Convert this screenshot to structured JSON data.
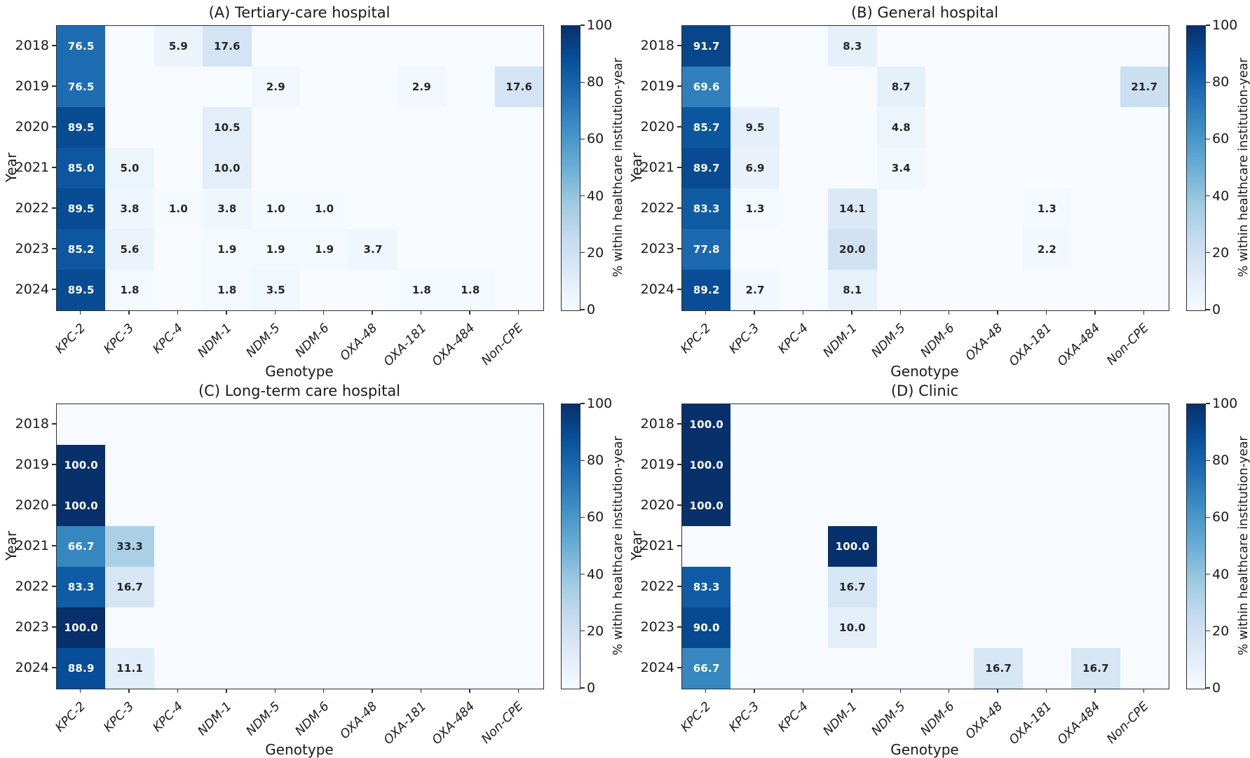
{
  "figure": {
    "xlabel": "Genotype",
    "ylabel": "Year",
    "colorbar_label": "% within healthcare institution-year"
  },
  "colors": {
    "colormap": "Blues",
    "colormap_low": "#f7fbff",
    "colormap_high": "#08306b",
    "annotation_dark": "#262626",
    "annotation_light": "#ffffff",
    "axis": "#2e2e2e",
    "background": "#ffffff"
  },
  "chart_data": [
    {
      "type": "heatmap",
      "panel": "A",
      "title": "(A) Tertiary-care hospital",
      "xlabel": "Genotype",
      "ylabel": "Year",
      "x_categories": [
        "KPC-2",
        "KPC-3",
        "KPC-4",
        "NDM-1",
        "NDM-5",
        "NDM-6",
        "OXA-48",
        "OXA-181",
        "OXA-484",
        "Non-CPE"
      ],
      "y_categories": [
        "2018",
        "2019",
        "2020",
        "2021",
        "2022",
        "2023",
        "2024"
      ],
      "values": [
        [
          76.5,
          0,
          5.9,
          17.6,
          0,
          0,
          0,
          0,
          0,
          0
        ],
        [
          76.5,
          0,
          0,
          0,
          2.9,
          0,
          0,
          2.9,
          0,
          17.6
        ],
        [
          89.5,
          0,
          0,
          10.5,
          0,
          0,
          0,
          0,
          0,
          0
        ],
        [
          85.0,
          5.0,
          0,
          10.0,
          0,
          0,
          0,
          0,
          0,
          0
        ],
        [
          89.5,
          3.8,
          1.0,
          3.8,
          1.0,
          1.0,
          0,
          0,
          0,
          0
        ],
        [
          85.2,
          5.6,
          0,
          1.9,
          1.9,
          1.9,
          3.7,
          0,
          0,
          0
        ],
        [
          89.5,
          1.8,
          0,
          1.8,
          3.5,
          0,
          0,
          1.8,
          1.8,
          0
        ]
      ],
      "vmin": 0,
      "vmax": 100,
      "colorbar_ticks": [
        0,
        20,
        40,
        60,
        80,
        100
      ],
      "colorbar_label": "% within healthcare institution-year",
      "annotation_note": "values shown to one decimal; zero cells left blank"
    },
    {
      "type": "heatmap",
      "panel": "B",
      "title": "(B) General hospital",
      "xlabel": "Genotype",
      "ylabel": "Year",
      "x_categories": [
        "KPC-2",
        "KPC-3",
        "KPC-4",
        "NDM-1",
        "NDM-5",
        "NDM-6",
        "OXA-48",
        "OXA-181",
        "OXA-484",
        "Non-CPE"
      ],
      "y_categories": [
        "2018",
        "2019",
        "2020",
        "2021",
        "2022",
        "2023",
        "2024"
      ],
      "values": [
        [
          91.7,
          0,
          0,
          8.3,
          0,
          0,
          0,
          0,
          0,
          0
        ],
        [
          69.6,
          0,
          0,
          0,
          8.7,
          0,
          0,
          0,
          0,
          21.7
        ],
        [
          85.7,
          9.5,
          0,
          0,
          4.8,
          0,
          0,
          0,
          0,
          0
        ],
        [
          89.7,
          6.9,
          0,
          0,
          3.4,
          0,
          0,
          0,
          0,
          0
        ],
        [
          83.3,
          1.3,
          0,
          14.1,
          0,
          0,
          0,
          1.3,
          0,
          0
        ],
        [
          77.8,
          0,
          0,
          20.0,
          0,
          0,
          0,
          2.2,
          0,
          0
        ],
        [
          89.2,
          2.7,
          0,
          8.1,
          0,
          0,
          0,
          0,
          0,
          0
        ]
      ],
      "vmin": 0,
      "vmax": 100,
      "colorbar_ticks": [
        0,
        20,
        40,
        60,
        80,
        100
      ],
      "colorbar_label": "% within healthcare institution-year",
      "annotation_note": "values shown to one decimal; zero cells left blank"
    },
    {
      "type": "heatmap",
      "panel": "C",
      "title": "(C) Long-term care hospital",
      "xlabel": "Genotype",
      "ylabel": "Year",
      "x_categories": [
        "KPC-2",
        "KPC-3",
        "KPC-4",
        "NDM-1",
        "NDM-5",
        "NDM-6",
        "OXA-48",
        "OXA-181",
        "OXA-484",
        "Non-CPE"
      ],
      "y_categories": [
        "2018",
        "2019",
        "2020",
        "2021",
        "2022",
        "2023",
        "2024"
      ],
      "values": [
        [
          0,
          0,
          0,
          0,
          0,
          0,
          0,
          0,
          0,
          0
        ],
        [
          100.0,
          0,
          0,
          0,
          0,
          0,
          0,
          0,
          0,
          0
        ],
        [
          100.0,
          0,
          0,
          0,
          0,
          0,
          0,
          0,
          0,
          0
        ],
        [
          66.7,
          33.3,
          0,
          0,
          0,
          0,
          0,
          0,
          0,
          0
        ],
        [
          83.3,
          16.7,
          0,
          0,
          0,
          0,
          0,
          0,
          0,
          0
        ],
        [
          100.0,
          0,
          0,
          0,
          0,
          0,
          0,
          0,
          0,
          0
        ],
        [
          88.9,
          11.1,
          0,
          0,
          0,
          0,
          0,
          0,
          0,
          0
        ]
      ],
      "vmin": 0,
      "vmax": 100,
      "colorbar_ticks": [
        0,
        20,
        40,
        60,
        80,
        100
      ],
      "colorbar_label": "% within healthcare institution-year",
      "annotation_note": "values shown to one decimal; zero cells left blank"
    },
    {
      "type": "heatmap",
      "panel": "D",
      "title": "(D) Clinic",
      "xlabel": "Genotype",
      "ylabel": "Year",
      "x_categories": [
        "KPC-2",
        "KPC-3",
        "KPC-4",
        "NDM-1",
        "NDM-5",
        "NDM-6",
        "OXA-48",
        "OXA-181",
        "OXA-484",
        "Non-CPE"
      ],
      "y_categories": [
        "2018",
        "2019",
        "2020",
        "2021",
        "2022",
        "2023",
        "2024"
      ],
      "values": [
        [
          100.0,
          0,
          0,
          0,
          0,
          0,
          0,
          0,
          0,
          0
        ],
        [
          100.0,
          0,
          0,
          0,
          0,
          0,
          0,
          0,
          0,
          0
        ],
        [
          100.0,
          0,
          0,
          0,
          0,
          0,
          0,
          0,
          0,
          0
        ],
        [
          0,
          0,
          0,
          100.0,
          0,
          0,
          0,
          0,
          0,
          0
        ],
        [
          83.3,
          0,
          0,
          16.7,
          0,
          0,
          0,
          0,
          0,
          0
        ],
        [
          90.0,
          0,
          0,
          10.0,
          0,
          0,
          0,
          0,
          0,
          0
        ],
        [
          66.7,
          0,
          0,
          0,
          0,
          0,
          16.7,
          0,
          16.7,
          0
        ]
      ],
      "vmin": 0,
      "vmax": 100,
      "colorbar_ticks": [
        0,
        20,
        40,
        60,
        80,
        100
      ],
      "colorbar_label": "% within healthcare institution-year",
      "annotation_note": "values shown to one decimal; zero cells left blank"
    }
  ]
}
